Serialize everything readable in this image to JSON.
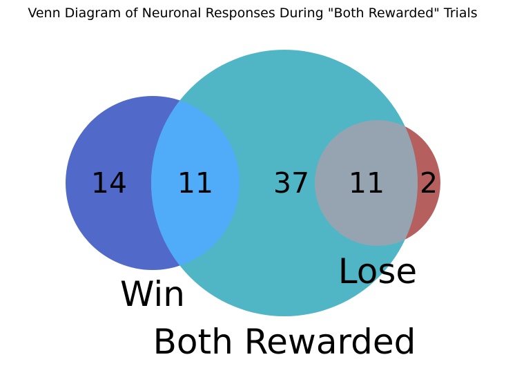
{
  "chart_data": {
    "type": "venn",
    "title": "Venn Diagram of Neuronal Responses During \"Both Rewarded\" Trials",
    "sets": [
      {
        "id": "win",
        "label": "Win",
        "color": "#5169c8"
      },
      {
        "id": "both",
        "label": "Both Rewarded",
        "color": "#50b6c6"
      },
      {
        "id": "lose",
        "label": "Lose",
        "color": "#b55f5f"
      }
    ],
    "regions": [
      {
        "id": "win_only",
        "sets": [
          "win"
        ],
        "value": 14,
        "color": "#5169c8"
      },
      {
        "id": "win_both",
        "sets": [
          "win",
          "both"
        ],
        "value": 11,
        "color": "#50acf8"
      },
      {
        "id": "both_only",
        "sets": [
          "both"
        ],
        "value": 37,
        "color": "#50b6c6"
      },
      {
        "id": "both_lose",
        "sets": [
          "both",
          "lose"
        ],
        "value": 11,
        "color": "#96a4b2"
      },
      {
        "id": "lose_only",
        "sets": [
          "lose"
        ],
        "value": 2,
        "color": "#b55f5f"
      }
    ]
  }
}
